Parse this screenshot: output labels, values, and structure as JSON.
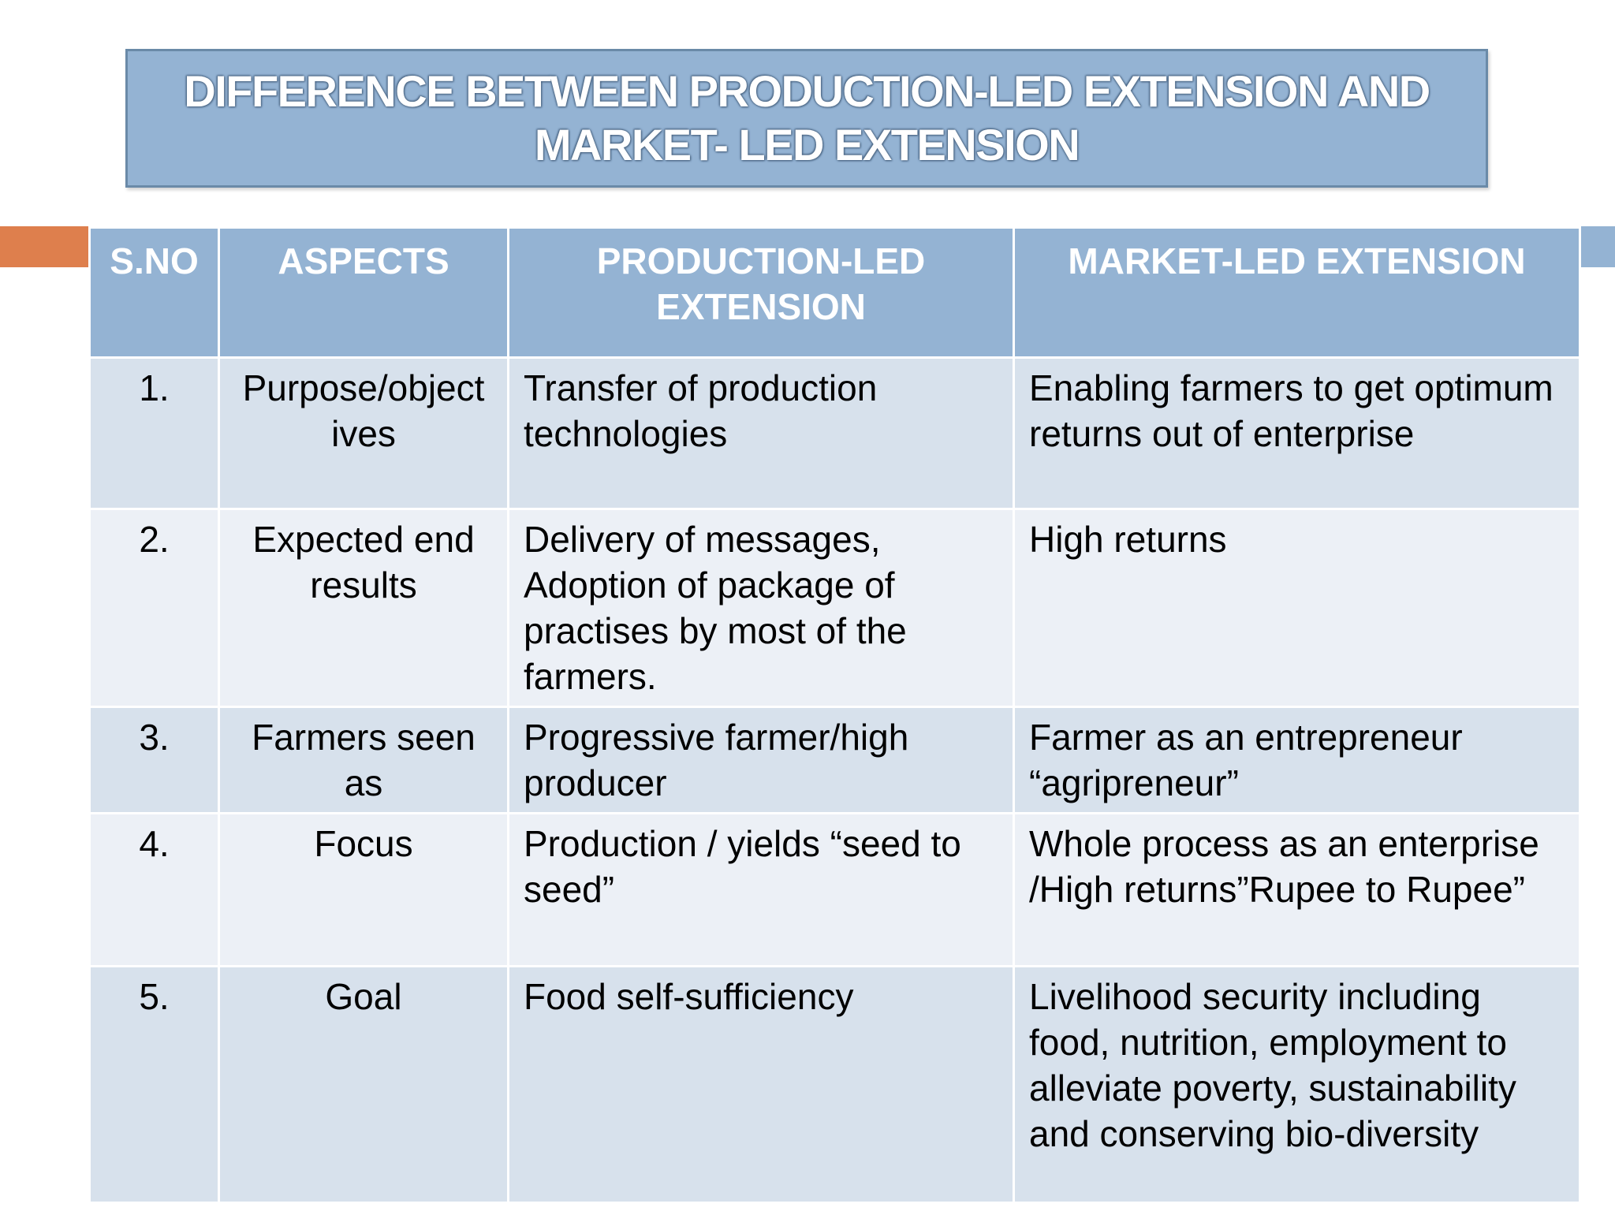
{
  "title": "DIFFERENCE BETWEEN PRODUCTION-LED EXTENSION AND MARKET- LED EXTENSION",
  "table": {
    "headers": {
      "sno": "S.NO",
      "aspects": "ASPECTS",
      "production": "PRODUCTION-LED EXTENSION",
      "market": "MARKET-LED EXTENSION"
    },
    "rows": [
      {
        "sno": "1.",
        "aspect": "Purpose/object ives",
        "production": "Transfer of production technologies",
        "market": "Enabling farmers to get optimum returns out of enterprise"
      },
      {
        "sno": "2.",
        "aspect": "Expected end results",
        "production": "Delivery of messages, Adoption of package of practises by most of the farmers.",
        "market": "High returns"
      },
      {
        "sno": "3.",
        "aspect": "Farmers seen as",
        "production": "Progressive farmer/high producer",
        "market": "Farmer as an entrepreneur “agripreneur”"
      },
      {
        "sno": "4.",
        "aspect": "Focus",
        "production": "Production / yields “seed to seed”",
        "market": "Whole process as an enterprise /High returns”Rupee to Rupee”"
      },
      {
        "sno": "5.",
        "aspect": "Goal",
        "production": "Food self-sufficiency",
        "market": "Livelihood security including food, nutrition, employment to alleviate poverty, sustainability and conserving bio-diversity"
      }
    ]
  },
  "colors": {
    "header_blue": "#94b3d3",
    "accent_orange": "#de7f4d",
    "row_dark": "#d7e1ec",
    "row_light": "#ecf0f6"
  }
}
